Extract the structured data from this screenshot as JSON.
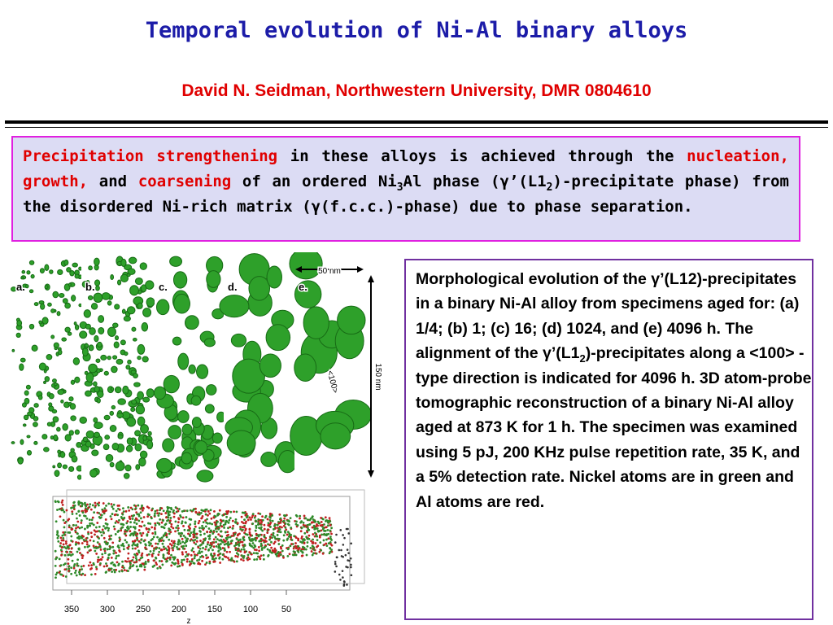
{
  "title": "Temporal evolution of Ni-Al binary alloys",
  "subtitle": "David N. Seidman, Northwestern University, DMR 0804610",
  "summary": [
    "Precipitation strengthening",
    " in these alloys is achieved through the ",
    "nucleation, growth,",
    " and ",
    "coarsening",
    " of an ordered Ni",
    "3",
    "Al phase (γ’(L1",
    "2",
    ")-precipitate phase) from the disordered Ni-rich matrix (γ(f.c.c.)-phase) due to phase separation."
  ],
  "figure": {
    "panels": [
      "a.",
      "b.",
      "c.",
      "d.",
      "e."
    ],
    "scale_bar": "50 nm",
    "height_bar": "150 nm",
    "direction": "<100>",
    "reconstruction": {
      "ticks": [
        350,
        300,
        250,
        200,
        150,
        100,
        50
      ],
      "axis_label": "z"
    }
  },
  "caption": [
    "Morphological evolution of the γ’(L12)-precipitates in a binary Ni-Al alloy from specimens aged for: (a) 1/4; (b) 1; (c) 16; (d) 1024, and (e) 4096 h. The alignment of the γ’(L1",
    "2",
    ")-precipitates along a <100> -type direction is indicated for 4096 h. 3D atom-probe tomographic reconstruction of a binary Ni-Al alloy aged at 873 K for 1 h. The specimen was examined using 5 pJ, 200 KHz pulse repetition rate, 35 K, and a 5% detection rate. Nickel atoms are in green and Al atoms are red."
  ]
}
